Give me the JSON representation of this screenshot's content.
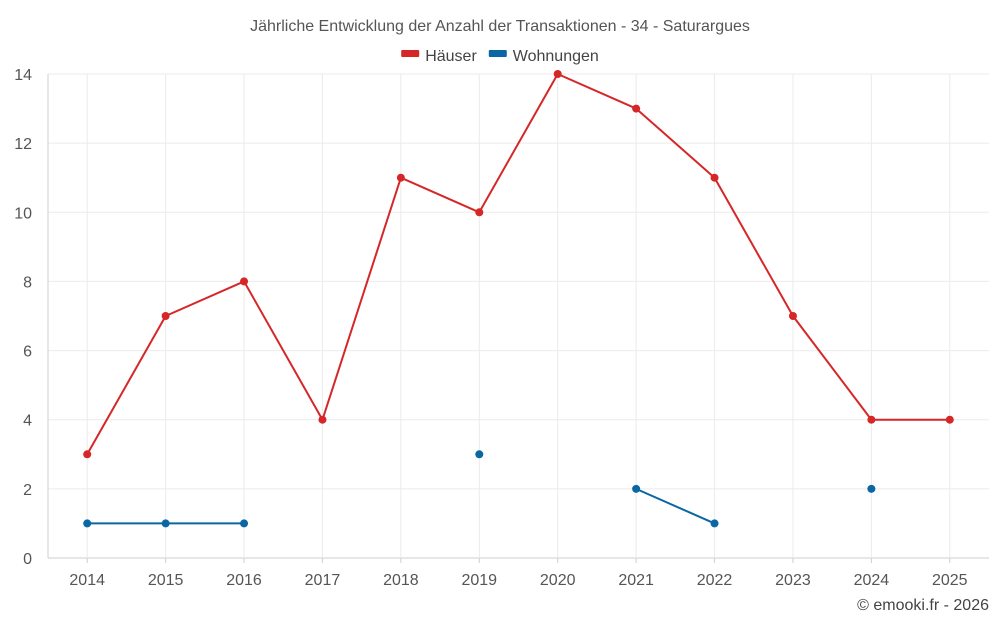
{
  "chart_data": {
    "type": "line",
    "title": "Jährliche Entwicklung der Anzahl der Transaktionen - 34 - Saturargues",
    "xlabel": "",
    "ylabel": "",
    "categories": [
      "2014",
      "2015",
      "2016",
      "2017",
      "2018",
      "2019",
      "2020",
      "2021",
      "2022",
      "2023",
      "2024",
      "2025"
    ],
    "ylim": [
      0,
      14
    ],
    "yticks": [
      0,
      2,
      4,
      6,
      8,
      10,
      12,
      14
    ],
    "grid": true,
    "legend_position": "top-center",
    "series": [
      {
        "name": "Häuser",
        "color": "#d62728",
        "values": [
          3,
          7,
          8,
          4,
          11,
          10,
          14,
          13,
          11,
          7,
          4,
          4
        ]
      },
      {
        "name": "Wohnungen",
        "color": "#0a67a3",
        "values": [
          1,
          1,
          1,
          null,
          null,
          3,
          null,
          2,
          1,
          null,
          2,
          null
        ]
      }
    ]
  },
  "credit": "© emooki.fr - 2026"
}
